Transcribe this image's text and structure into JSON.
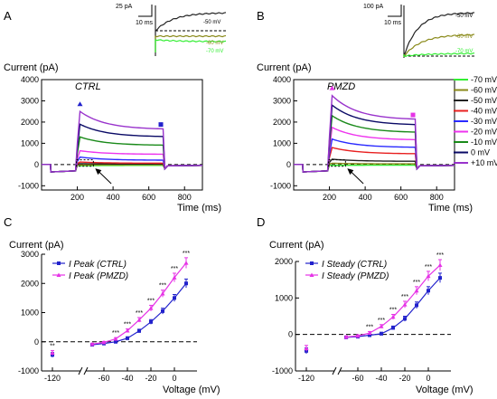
{
  "colors": {
    "m70": "#33ee33",
    "m60": "#8a8a1a",
    "m50": "#222222",
    "m40": "#e82020",
    "m30": "#2a2aff",
    "m20": "#ee33ee",
    "m10": "#1a8a1a",
    "p0": "#0a0a66",
    "p10": "#9933cc",
    "ctrl": "#2222cc",
    "pmzd": "#e633e6"
  },
  "panels": {
    "A": {
      "letter": "A",
      "condition": "CTRL",
      "ylabel": "Current (pA)",
      "yticks": [
        "4000",
        "3000",
        "2000",
        "1000",
        "0",
        "-1000"
      ],
      "xticks": [
        "200",
        "400",
        "600",
        "800"
      ]
    },
    "B": {
      "letter": "B",
      "condition": "PMZD",
      "ylabel": "Current (pA)",
      "yticks": [
        "4000",
        "3000",
        "2000",
        "1000",
        "0",
        "-1000"
      ],
      "xticks": [
        "200",
        "400",
        "600",
        "800"
      ],
      "xlabel": "Time (ms)"
    },
    "C": {
      "letter": "C",
      "ylabel": "Current (pA)",
      "yticks": [
        "3000",
        "2000",
        "1000",
        "0",
        "-1000"
      ],
      "xticks": [
        "-120",
        "-60",
        "-40",
        "-20",
        "0"
      ],
      "xlabel": "Voltage (mV)"
    },
    "D": {
      "letter": "D",
      "ylabel": "Current (pA)",
      "yticks": [
        "2000",
        "1000",
        "0",
        "-1000"
      ],
      "xticks": [
        "-120",
        "-60",
        "-40",
        "-20",
        "0"
      ],
      "xlabel": "Voltage (mV)"
    }
  },
  "time_axis_label": "Time (ms)",
  "insets": {
    "A": {
      "scale_y": "25 pA",
      "scale_x": "10 ms",
      "labels": [
        "-50 mV",
        "-60 mV",
        "-70 mV"
      ]
    },
    "B": {
      "scale_y": "100 pA",
      "scale_x": "10 ms",
      "labels": [
        "-50 mV",
        "-60 mV",
        "-70 mV"
      ]
    }
  },
  "legend_voltages": [
    "-70 mV",
    "-60 mV",
    "-50 mV",
    "-40 mV",
    "-30 mV",
    "-20 mV",
    "-10 mV",
    "0 mV",
    "+10 mV"
  ],
  "sig_marker": "***",
  "chart_data": [
    {
      "type": "line",
      "panel": "A",
      "condition": "CTRL",
      "xlabel": "Time (ms)",
      "ylabel": "Current (pA)",
      "xlim": [
        0,
        900
      ],
      "ylim": [
        -1200,
        4000
      ],
      "series": [
        {
          "name": "-70 mV",
          "peak": -60,
          "steady": -40
        },
        {
          "name": "-60 mV",
          "peak": -20,
          "steady": -10
        },
        {
          "name": "-50 mV",
          "peak": 40,
          "steady": 20
        },
        {
          "name": "-40 mV",
          "peak": 120,
          "steady": 60
        },
        {
          "name": "-30 mV",
          "peak": 350,
          "steady": 200
        },
        {
          "name": "-20 mV",
          "peak": 650,
          "steady": 480
        },
        {
          "name": "-10 mV",
          "peak": 1300,
          "steady": 900
        },
        {
          "name": "0 mV",
          "peak": 1900,
          "steady": 1300
        },
        {
          "name": "+10 mV",
          "peak": 2500,
          "steady": 1650
        }
      ]
    },
    {
      "type": "line",
      "panel": "B",
      "condition": "PMZD",
      "xlabel": "Time (ms)",
      "ylabel": "Current (pA)",
      "xlim": [
        0,
        900
      ],
      "ylim": [
        -1200,
        4000
      ],
      "series": [
        {
          "name": "-70 mV",
          "peak": -40,
          "steady": -30
        },
        {
          "name": "-60 mV",
          "peak": 60,
          "steady": 30
        },
        {
          "name": "-50 mV",
          "peak": 250,
          "steady": 150
        },
        {
          "name": "-40 mV",
          "peak": 800,
          "steady": 500
        },
        {
          "name": "-30 mV",
          "peak": 1200,
          "steady": 800
        },
        {
          "name": "-20 mV",
          "peak": 1750,
          "steady": 1150
        },
        {
          "name": "-10 mV",
          "peak": 2300,
          "steady": 1500
        },
        {
          "name": "0 mV",
          "peak": 2800,
          "steady": 1850
        },
        {
          "name": "+10 mV",
          "peak": 3250,
          "steady": 2100
        }
      ]
    },
    {
      "type": "line",
      "panel": "C",
      "xlabel": "Voltage (mV)",
      "ylabel": "Current (pA)",
      "ylim": [
        -1000,
        3000
      ],
      "x": [
        -120,
        -70,
        -60,
        -50,
        -40,
        -30,
        -20,
        -10,
        0,
        10
      ],
      "series": [
        {
          "name": "I Peak (CTRL)",
          "values": [
            -450,
            -100,
            -60,
            0,
            120,
            370,
            680,
            1050,
            1500,
            2000
          ],
          "err": [
            80,
            30,
            30,
            40,
            50,
            60,
            80,
            100,
            120,
            150
          ]
        },
        {
          "name": "I Peak (PMZD)",
          "values": [
            -380,
            -80,
            -20,
            100,
            380,
            750,
            1150,
            1650,
            2200,
            2700
          ],
          "err": [
            80,
            30,
            30,
            40,
            60,
            80,
            100,
            120,
            150,
            180
          ]
        }
      ],
      "significance": [
        -120,
        -50,
        -40,
        -30,
        -20,
        -10,
        0,
        10
      ]
    },
    {
      "type": "line",
      "panel": "D",
      "xlabel": "Voltage (mV)",
      "ylabel": "Current (pA)",
      "ylim": [
        -1000,
        2000
      ],
      "x": [
        -120,
        -70,
        -60,
        -50,
        -40,
        -30,
        -20,
        -10,
        0,
        10
      ],
      "series": [
        {
          "name": "I Steady (CTRL)",
          "values": [
            -450,
            -80,
            -60,
            -20,
            20,
            180,
            430,
            800,
            1200,
            1550
          ],
          "err": [
            80,
            30,
            30,
            30,
            40,
            50,
            70,
            90,
            110,
            130
          ]
        },
        {
          "name": "I Steady (PMZD)",
          "values": [
            -380,
            -70,
            -40,
            40,
            220,
            480,
            820,
            1200,
            1600,
            1900
          ],
          "err": [
            80,
            30,
            30,
            40,
            50,
            70,
            90,
            110,
            130,
            150
          ]
        }
      ],
      "significance": [
        -50,
        -40,
        -30,
        -20,
        -10,
        0,
        10
      ]
    }
  ]
}
